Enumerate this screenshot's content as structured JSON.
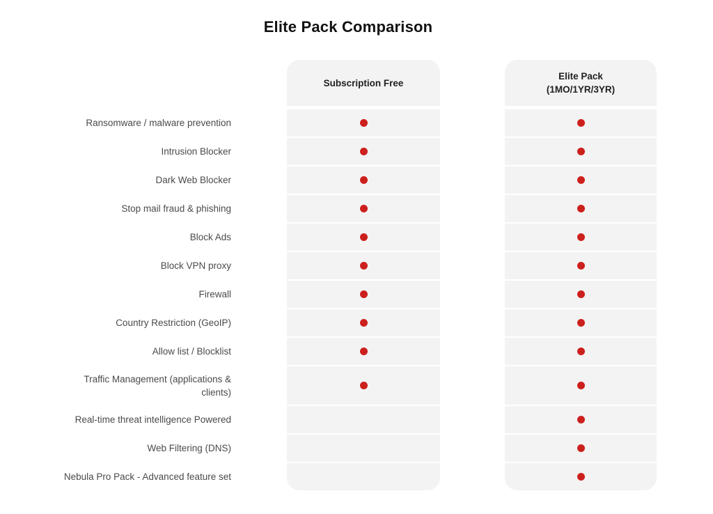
{
  "title": "Elite Pack Comparison",
  "columns": [
    {
      "label": "Subscription Free",
      "sublabel": ""
    },
    {
      "label": "Elite Pack",
      "sublabel": "(1MO/1YR/3YR)"
    }
  ],
  "legend": {
    "included_marker": "red-dot"
  },
  "colors": {
    "dot": "#cc201d",
    "cell_background": "#f4f3f3",
    "label_text": "#4a4a4a",
    "header_text": "#1f1f1f",
    "title_text": "#111111"
  },
  "rows": [
    {
      "feature": "Ransomware / malware prevention",
      "subscription_free": true,
      "elite_pack": true
    },
    {
      "feature": "Intrusion Blocker",
      "subscription_free": true,
      "elite_pack": true
    },
    {
      "feature": "Dark Web Blocker",
      "subscription_free": true,
      "elite_pack": true
    },
    {
      "feature": "Stop mail fraud & phishing",
      "subscription_free": true,
      "elite_pack": true
    },
    {
      "feature": "Block Ads",
      "subscription_free": true,
      "elite_pack": true
    },
    {
      "feature": "Block VPN proxy",
      "subscription_free": true,
      "elite_pack": true
    },
    {
      "feature": "Firewall",
      "subscription_free": true,
      "elite_pack": true
    },
    {
      "feature": "Country Restriction (GeoIP)",
      "subscription_free": true,
      "elite_pack": true
    },
    {
      "feature": "Allow list / Blocklist",
      "subscription_free": true,
      "elite_pack": true
    },
    {
      "feature": "Traffic Management (applications & clients)",
      "subscription_free": true,
      "elite_pack": true
    },
    {
      "feature": "Real-time threat intelligence Powered",
      "subscription_free": false,
      "elite_pack": true
    },
    {
      "feature": "Web Filtering (DNS)",
      "subscription_free": false,
      "elite_pack": true
    },
    {
      "feature": "Nebula Pro Pack - Advanced feature set",
      "subscription_free": false,
      "elite_pack": true
    }
  ]
}
